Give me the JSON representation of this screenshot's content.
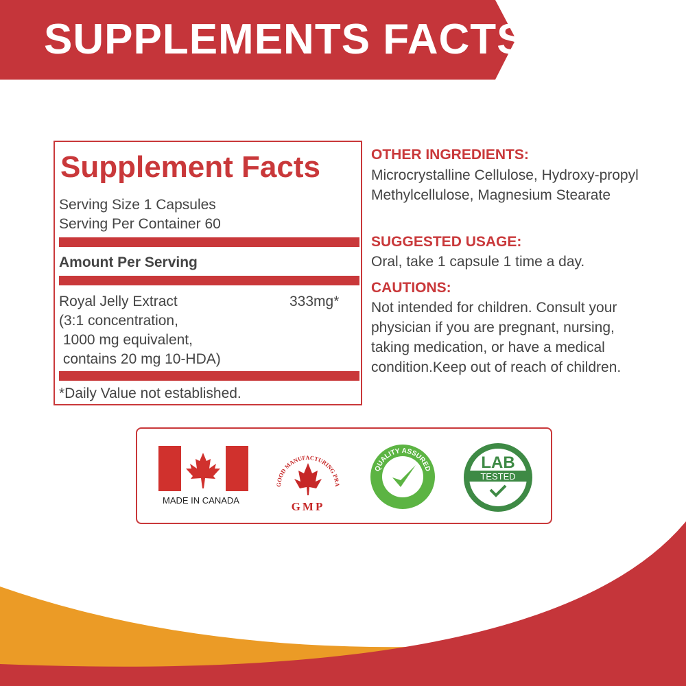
{
  "banner": {
    "title": "SUPPLEMENTS FACTS"
  },
  "facts": {
    "title": "Supplement Facts",
    "serving_size": "Serving Size 1 Capsules",
    "servings_per_container": "Serving Per Container 60",
    "amount_header": "Amount Per Serving",
    "ingredient": {
      "name": "Royal Jelly Extract",
      "amount": "333mg*",
      "detail_lines": [
        "(3:1 concentration,",
        " 1000 mg equivalent,",
        " contains 20 mg 10-HDA)"
      ]
    },
    "footnote": "*Daily Value not established."
  },
  "info": {
    "other_heading": "OTHER INGREDIENTS:",
    "other_text": "Microcrystalline Cellulose, Hydroxy-propyl Methylcellulose, Magnesium Stearate",
    "usage_heading": "SUGGESTED USAGE:",
    "usage_text": "Oral, take 1 capsule 1 time a day.",
    "cautions_heading": "CAUTIONS:",
    "cautions_text": "Not intended for children. Consult your physician if you are pregnant, nursing, taking medication, or have a medical condition.Keep out of reach of children."
  },
  "badges": {
    "canada": "MADE IN CANADA",
    "gmp_ring": "GOOD MANUFACTURING PRACTICES",
    "gmp": "GMP",
    "quality": "QUALITY ASSURED",
    "lab": "LAB",
    "tested": "TESTED"
  },
  "colors": {
    "red": "#c5353a",
    "orange": "#eb9b26",
    "green": "#3e8a45"
  }
}
